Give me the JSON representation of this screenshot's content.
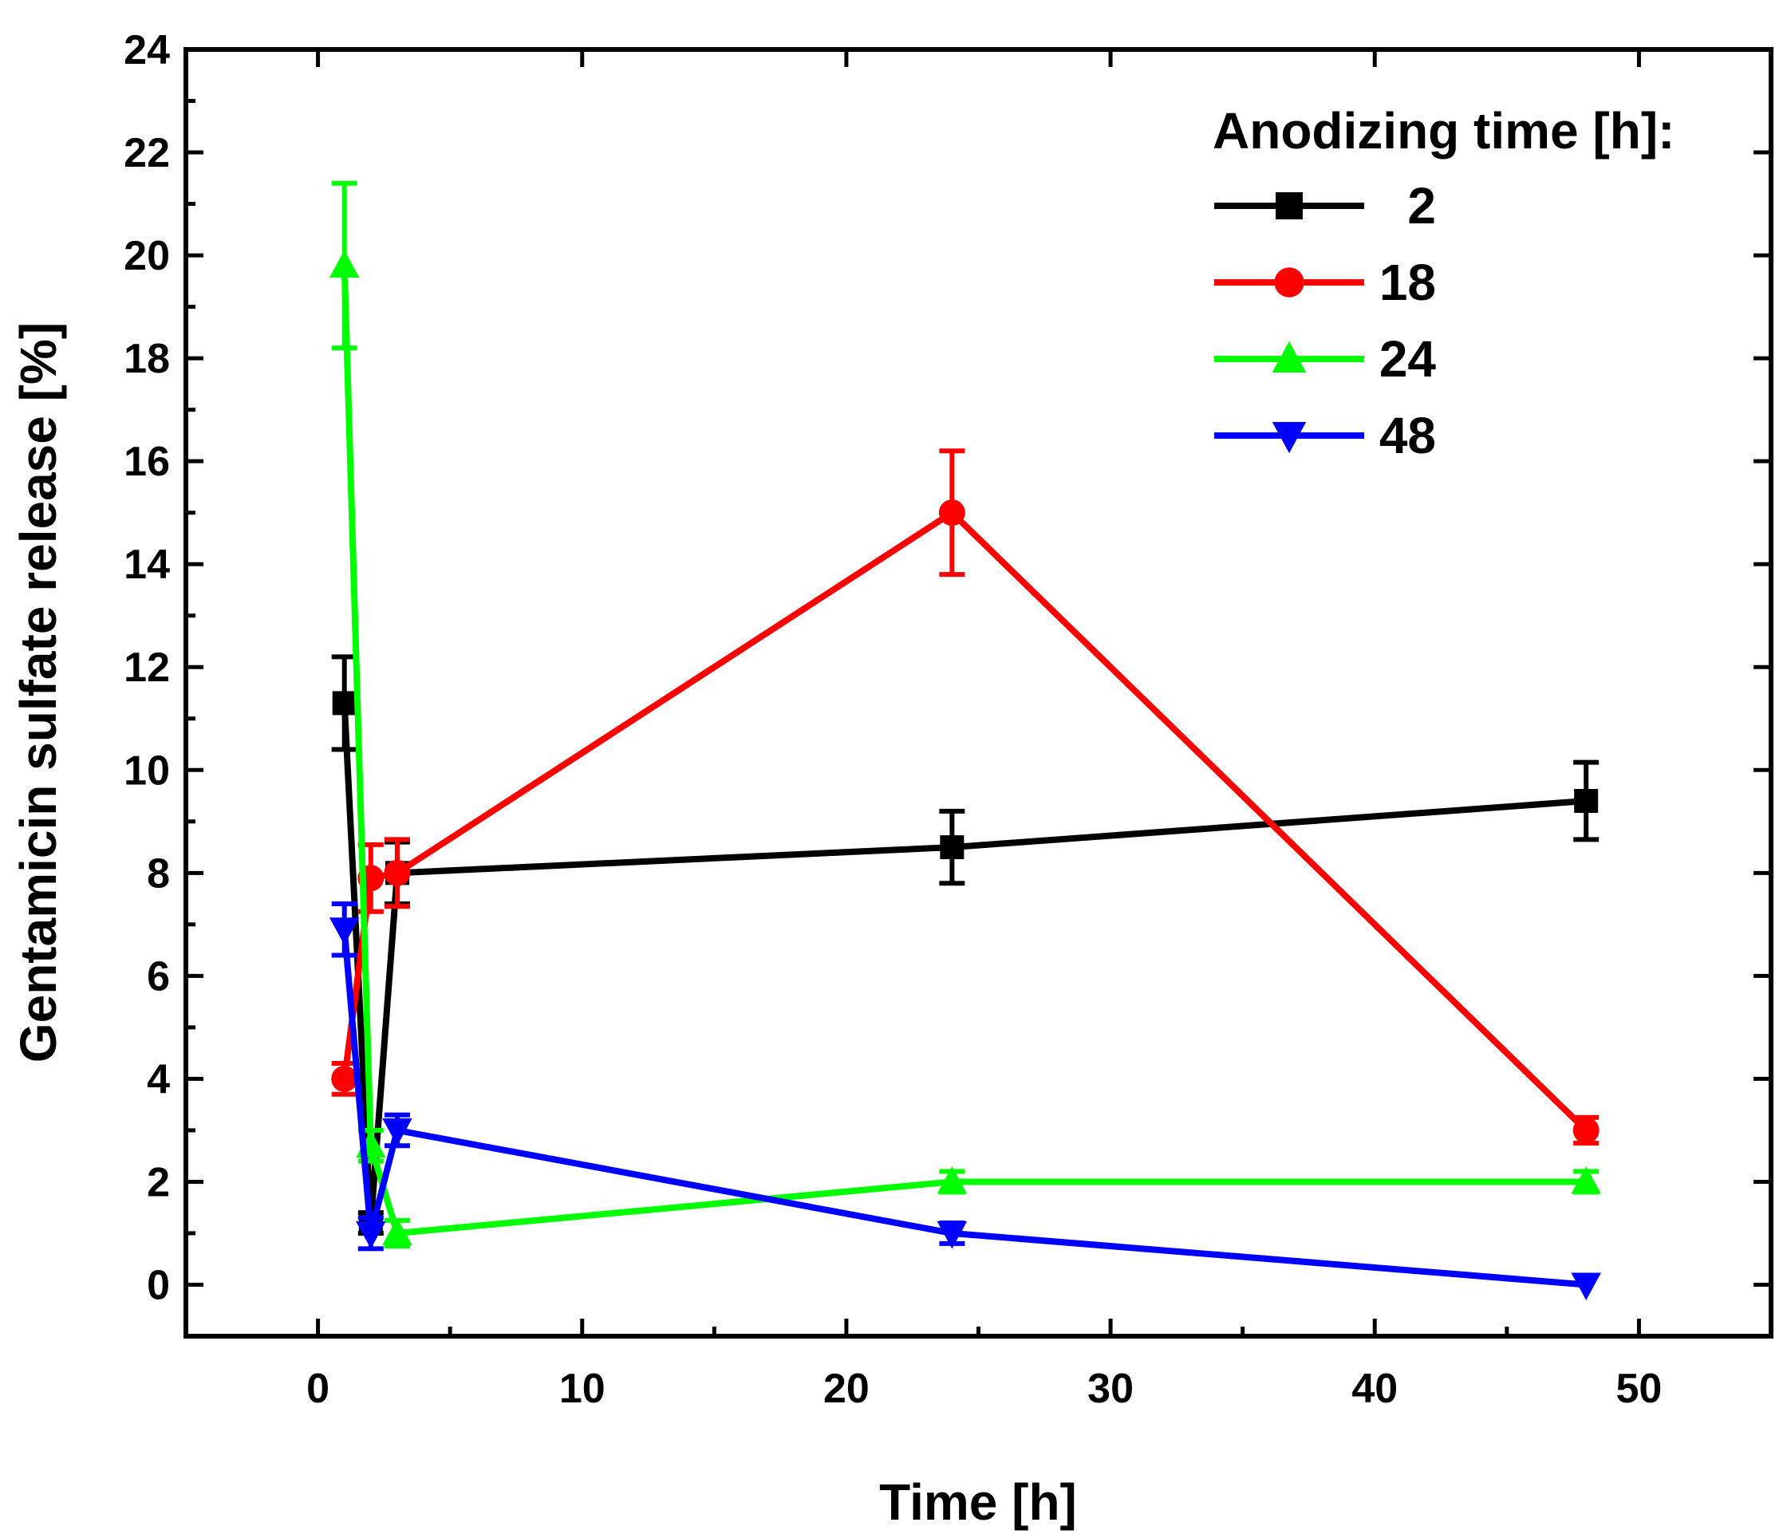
{
  "chart_data": {
    "type": "line",
    "title": "",
    "xlabel": "Time [h]",
    "ylabel": "Gentamicin sulfate release [%]",
    "xlim": [
      -5,
      55
    ],
    "ylim": [
      -1,
      24
    ],
    "xticks": [
      0,
      10,
      20,
      30,
      40,
      50
    ],
    "yticks": [
      0,
      2,
      4,
      6,
      8,
      10,
      12,
      14,
      16,
      18,
      20,
      22,
      24
    ],
    "grid": false,
    "legend_title": "Anodizing time [h]:",
    "legend_position": "top-right",
    "x": [
      1,
      2,
      3,
      24,
      48
    ],
    "series": [
      {
        "name": "2",
        "color": "#000000",
        "marker": "square",
        "values": [
          11.3,
          1.2,
          8.0,
          8.5,
          9.4
        ],
        "errors": [
          0.9,
          0.2,
          0.6,
          0.7,
          0.75
        ]
      },
      {
        "name": "18",
        "color": "#ff0000",
        "marker": "circle",
        "values": [
          4.0,
          7.9,
          8.0,
          15.0,
          3.0
        ],
        "errors": [
          0.3,
          0.65,
          0.65,
          1.2,
          0.25
        ]
      },
      {
        "name": "24",
        "color": "#00ff00",
        "marker": "triangle-up",
        "values": [
          19.8,
          2.7,
          1.0,
          2.0,
          2.0
        ],
        "errors": [
          1.6,
          0.3,
          0.25,
          0.2,
          0.2
        ]
      },
      {
        "name": "48",
        "color": "#0000ff",
        "marker": "triangle-down",
        "values": [
          6.9,
          1.0,
          3.0,
          1.0,
          0.0
        ],
        "errors": [
          0.5,
          0.3,
          0.3,
          0.2,
          0.0
        ]
      }
    ]
  }
}
